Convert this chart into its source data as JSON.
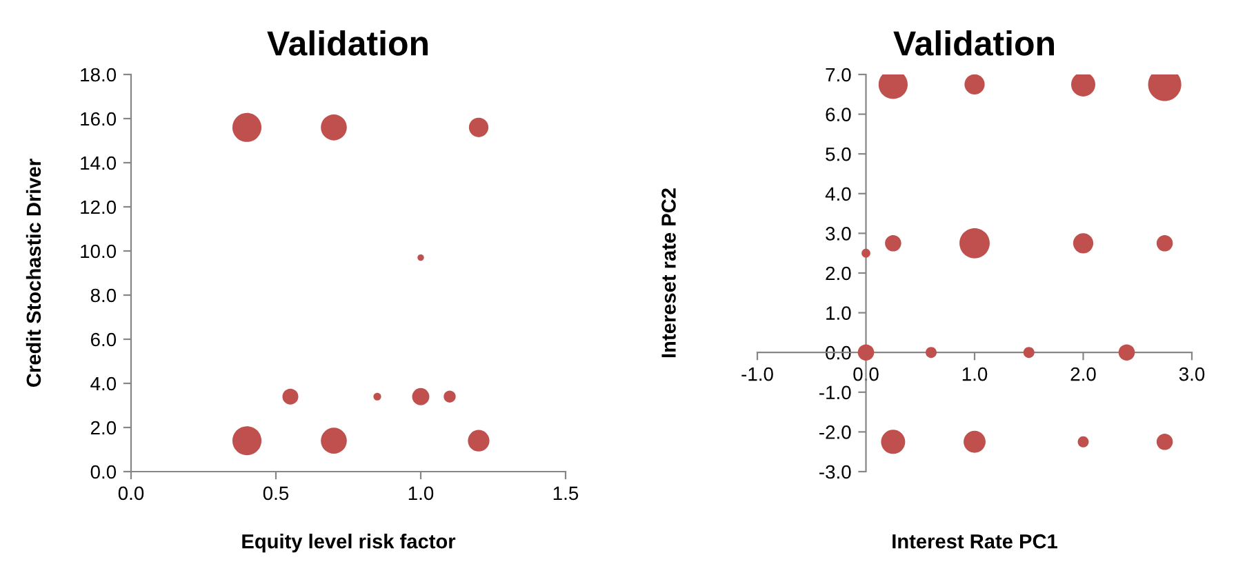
{
  "chart_data": [
    {
      "type": "bubble",
      "title": "Validation",
      "xlabel": "Equity level risk factor",
      "ylabel": "Credit Stochastic Driver",
      "x": [
        0.4,
        0.7,
        1.2,
        1.0,
        0.55,
        0.85,
        1.0,
        1.1,
        0.4,
        0.7,
        1.2
      ],
      "values": [
        15.6,
        15.6,
        15.6,
        9.7,
        3.4,
        3.4,
        3.4,
        3.4,
        1.4,
        1.4,
        1.4
      ],
      "sizes": [
        1,
        0.8,
        0.45,
        0.05,
        0.3,
        0.07,
        0.35,
        0.17,
        1,
        0.8,
        0.55
      ],
      "color": "#c0504d",
      "xlim": [
        0,
        1.5
      ],
      "xticks": [
        {
          "value": 0,
          "label": "0.0"
        },
        {
          "value": 0.5,
          "label": "0.5"
        },
        {
          "value": 1.0,
          "label": "1.0"
        },
        {
          "value": 1.5,
          "label": "1.5"
        }
      ],
      "ylim": [
        0,
        18
      ],
      "yticks": [
        {
          "value": 0,
          "label": "0.0"
        },
        {
          "value": 2,
          "label": "2.0"
        },
        {
          "value": 4,
          "label": "4.0"
        },
        {
          "value": 6,
          "label": "6.0"
        },
        {
          "value": 8,
          "label": "8.0"
        },
        {
          "value": 10,
          "label": "10.0"
        },
        {
          "value": 12,
          "label": "12.0"
        },
        {
          "value": 14,
          "label": "14.0"
        },
        {
          "value": 16,
          "label": "16.0"
        },
        {
          "value": 18,
          "label": "18.0"
        }
      ],
      "grid": false,
      "legend": false
    },
    {
      "type": "bubble",
      "title": "Validation",
      "xlabel": "Interest Rate PC1",
      "ylabel": "Intereset rate PC2",
      "x": [
        0.25,
        1.0,
        2.0,
        2.75,
        0.25,
        1.0,
        2.0,
        2.75,
        0.0,
        0.0,
        0.6,
        1.5,
        2.4,
        0.25,
        1.0,
        2.0,
        2.75
      ],
      "values": [
        6.75,
        6.75,
        6.75,
        6.75,
        2.75,
        2.75,
        2.75,
        2.75,
        2.5,
        0.0,
        0.0,
        0.0,
        0.0,
        -2.25,
        -2.25,
        -2.25,
        -2.25
      ],
      "sizes": [
        0.77,
        0.37,
        0.53,
        1,
        0.24,
        0.83,
        0.37,
        0.24,
        0.07,
        0.24,
        0.11,
        0.11,
        0.24,
        0.53,
        0.44,
        0.11,
        0.24
      ],
      "color": "#c0504d",
      "xlim": [
        -1,
        3
      ],
      "xticks": [
        {
          "value": -1,
          "label": "-1.0"
        },
        {
          "value": 0,
          "label": "0.0"
        },
        {
          "value": 1,
          "label": "1.0"
        },
        {
          "value": 2,
          "label": "2.0"
        },
        {
          "value": 3,
          "label": "3.0"
        }
      ],
      "ylim": [
        -3,
        7
      ],
      "yticks": [
        {
          "value": -3,
          "label": "-3.0"
        },
        {
          "value": -2,
          "label": "-2.0"
        },
        {
          "value": -1,
          "label": "-1.0"
        },
        {
          "value": 0,
          "label": "0.0"
        },
        {
          "value": 1,
          "label": "1.0"
        },
        {
          "value": 2,
          "label": "2.0"
        },
        {
          "value": 3,
          "label": "3.0"
        },
        {
          "value": 4,
          "label": "4.0"
        },
        {
          "value": 5,
          "label": "5.0"
        },
        {
          "value": 6,
          "label": "6.0"
        },
        {
          "value": 7,
          "label": "7.0"
        }
      ],
      "grid": false,
      "legend": false
    }
  ]
}
